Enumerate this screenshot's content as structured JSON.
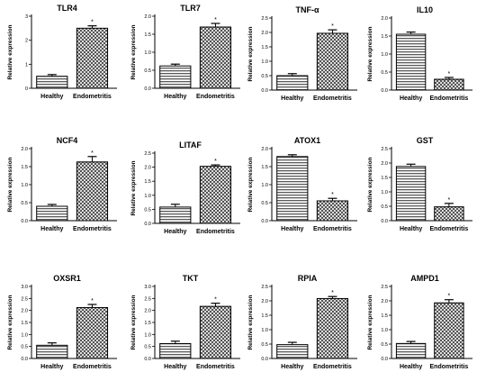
{
  "figure": {
    "ylabel": "Relative expression",
    "categories": [
      "Healthy",
      "Endometritis"
    ],
    "significance_marker": "*"
  },
  "chart_data": [
    {
      "type": "bar",
      "title": "TLR4",
      "categories": [
        "Healthy",
        "Endometritis"
      ],
      "values": [
        0.5,
        2.5
      ],
      "errors": [
        0.07,
        0.1
      ],
      "significant": [
        false,
        true
      ],
      "ylim": [
        0,
        3
      ],
      "yticks": [
        0,
        1,
        2,
        3
      ],
      "ytick_labels": [
        "0",
        "1",
        "2",
        "3"
      ],
      "ylabel": "Relative expression"
    },
    {
      "type": "bar",
      "title": "TLR7",
      "categories": [
        "Healthy",
        "Endometritis"
      ],
      "values": [
        0.62,
        1.7
      ],
      "errors": [
        0.05,
        0.1
      ],
      "significant": [
        false,
        true
      ],
      "ylim": [
        0,
        2.0
      ],
      "yticks": [
        0,
        0.5,
        1.0,
        1.5,
        2.0
      ],
      "ytick_labels": [
        "0.0",
        "0.5",
        "1.0",
        "1.5",
        "2.0"
      ],
      "ylabel": "Relative expression"
    },
    {
      "type": "bar",
      "title": "TNF-α",
      "categories": [
        "Healthy",
        "Endometritis"
      ],
      "values": [
        0.5,
        1.97
      ],
      "errors": [
        0.07,
        0.12
      ],
      "significant": [
        false,
        true
      ],
      "ylim": [
        0,
        2.5
      ],
      "yticks": [
        0,
        0.5,
        1.0,
        1.5,
        2.0,
        2.5
      ],
      "ytick_labels": [
        "0.0",
        "0.5",
        "1.0",
        "1.5",
        "2.0",
        "2.5"
      ],
      "ylabel": "Relative expression"
    },
    {
      "type": "bar",
      "title": "IL10",
      "categories": [
        "Healthy",
        "Endometritis"
      ],
      "values": [
        1.55,
        0.3
      ],
      "errors": [
        0.06,
        0.05
      ],
      "significant": [
        false,
        true
      ],
      "ylim": [
        0,
        2.0
      ],
      "yticks": [
        0,
        0.5,
        1.0,
        1.5,
        2.0
      ],
      "ytick_labels": [
        "0.0",
        "0.5",
        "1.0",
        "1.5",
        "2.0"
      ],
      "ylabel": "Relative expression"
    },
    {
      "type": "bar",
      "title": "NCF4",
      "categories": [
        "Healthy",
        "Endometritis"
      ],
      "values": [
        0.4,
        1.63
      ],
      "errors": [
        0.05,
        0.15
      ],
      "significant": [
        false,
        true
      ],
      "ylim": [
        0,
        2.0
      ],
      "yticks": [
        0,
        0.5,
        1.0,
        1.5,
        2.0
      ],
      "ytick_labels": [
        "0.0",
        "0.5",
        "1.0",
        "1.5",
        "2.0"
      ],
      "ylabel": "Relative expression"
    },
    {
      "type": "bar",
      "title": "LITAF",
      "categories": [
        "Healthy",
        "Endometritis"
      ],
      "values": [
        0.58,
        2.03
      ],
      "errors": [
        0.1,
        0.05
      ],
      "significant": [
        false,
        true
      ],
      "ylim": [
        0,
        2.5
      ],
      "yticks": [
        0,
        0.5,
        1.0,
        1.5,
        2.0,
        2.5
      ],
      "ytick_labels": [
        "0.0",
        "0.5",
        "1.0",
        "1.5",
        "2.0",
        "2.5"
      ],
      "ylabel": "Relative expression"
    },
    {
      "type": "bar",
      "title": "ATOX1",
      "categories": [
        "Healthy",
        "Endometritis"
      ],
      "values": [
        1.78,
        0.55
      ],
      "errors": [
        0.05,
        0.07
      ],
      "significant": [
        false,
        true
      ],
      "ylim": [
        0,
        2.0
      ],
      "yticks": [
        0,
        0.5,
        1.0,
        1.5,
        2.0
      ],
      "ytick_labels": [
        "0.0",
        "0.5",
        "1.0",
        "1.5",
        "2.0"
      ],
      "ylabel": "Relative expression"
    },
    {
      "type": "bar",
      "title": "GST",
      "categories": [
        "Healthy",
        "Endometritis"
      ],
      "values": [
        1.88,
        0.48
      ],
      "errors": [
        0.08,
        0.12
      ],
      "significant": [
        false,
        true
      ],
      "ylim": [
        0,
        2.5
      ],
      "yticks": [
        0,
        0.5,
        1.0,
        1.5,
        2.0,
        2.5
      ],
      "ytick_labels": [
        "0.0",
        "0.5",
        "1.0",
        "1.5",
        "2.0",
        "2.5"
      ],
      "ylabel": "Relative expression"
    },
    {
      "type": "bar",
      "title": "OXSR1",
      "categories": [
        "Healthy",
        "Endometritis"
      ],
      "values": [
        0.55,
        2.12
      ],
      "errors": [
        0.1,
        0.13
      ],
      "significant": [
        false,
        true
      ],
      "ylim": [
        0,
        3.0
      ],
      "yticks": [
        0,
        0.5,
        1.0,
        1.5,
        2.0,
        2.5,
        3.0
      ],
      "ytick_labels": [
        "0.0",
        "0.5",
        "1.0",
        "1.5",
        "2.0",
        "2.5",
        "3.0"
      ],
      "ylabel": "Relative expression"
    },
    {
      "type": "bar",
      "title": "TKT",
      "categories": [
        "Healthy",
        "Endometritis"
      ],
      "values": [
        0.62,
        2.17
      ],
      "errors": [
        0.1,
        0.13
      ],
      "significant": [
        false,
        true
      ],
      "ylim": [
        0,
        3.0
      ],
      "yticks": [
        0,
        0.5,
        1.0,
        1.5,
        2.0,
        2.5,
        3.0
      ],
      "ytick_labels": [
        "0.0",
        "0.5",
        "1.0",
        "1.5",
        "2.0",
        "2.5",
        "3.0"
      ],
      "ylabel": "Relative expression"
    },
    {
      "type": "bar",
      "title": "RPIA",
      "categories": [
        "Healthy",
        "Endometritis"
      ],
      "values": [
        0.48,
        2.08
      ],
      "errors": [
        0.08,
        0.07
      ],
      "significant": [
        false,
        true
      ],
      "ylim": [
        0,
        2.5
      ],
      "yticks": [
        0,
        0.5,
        1.0,
        1.5,
        2.0,
        2.5
      ],
      "ytick_labels": [
        "0.0",
        "0.5",
        "1.0",
        "1.5",
        "2.0",
        "2.5"
      ],
      "ylabel": "Relative expression"
    },
    {
      "type": "bar",
      "title": "AMPD1",
      "categories": [
        "Healthy",
        "Endometritis"
      ],
      "values": [
        0.52,
        1.93
      ],
      "errors": [
        0.07,
        0.11
      ],
      "significant": [
        false,
        true
      ],
      "ylim": [
        0,
        2.5
      ],
      "yticks": [
        0,
        0.5,
        1.0,
        1.5,
        2.0,
        2.5
      ],
      "ytick_labels": [
        "0.0",
        "0.5",
        "1.0",
        "1.5",
        "2.0",
        "2.5"
      ],
      "ylabel": "Relative expression"
    }
  ]
}
